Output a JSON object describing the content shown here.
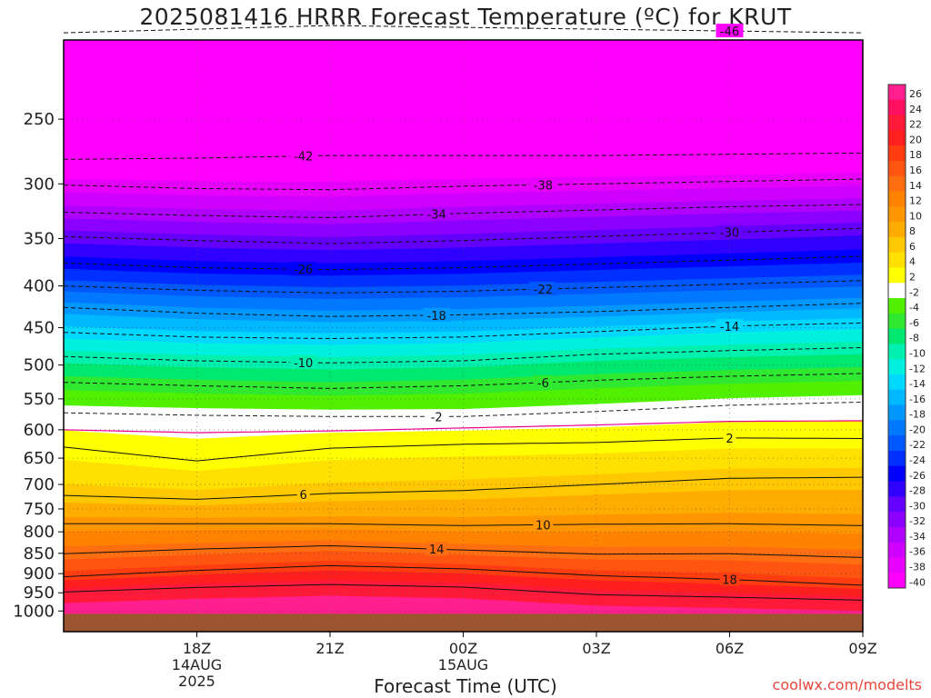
{
  "chart_data": {
    "type": "heatmap",
    "title": "2025081416 HRRR Forecast Temperature (ºC) for KRUT",
    "xlabel": "Forecast Time (UTC)",
    "ylabel": "",
    "credit": "coolwx.com/modelts",
    "y_axis": {
      "scale": "log",
      "inverted": true,
      "ticks": [
        250,
        300,
        350,
        400,
        450,
        500,
        550,
        600,
        650,
        700,
        750,
        800,
        850,
        900,
        950,
        1000
      ]
    },
    "x_axis": {
      "range_hours": [
        -3,
        27
      ],
      "ticks": [
        {
          "hour": 2,
          "lines": [
            "18Z",
            "14AUG",
            "2025"
          ]
        },
        {
          "hour": 7,
          "lines": [
            "21Z"
          ]
        },
        {
          "hour": 12,
          "lines": [
            "00Z",
            "15AUG"
          ]
        },
        {
          "hour": 17,
          "lines": [
            "03Z"
          ]
        },
        {
          "hour": 22,
          "lines": [
            "06Z"
          ]
        },
        {
          "hour": 27,
          "lines": [
            "09Z"
          ]
        }
      ]
    },
    "colorbar": {
      "labels": [
        "26",
        "24",
        "22",
        "20",
        "18",
        "16",
        "14",
        "12",
        "10",
        "8",
        "6",
        "4",
        "2",
        "-2",
        "-4",
        "-6",
        "-8",
        "-10",
        "-12",
        "-14",
        "-16",
        "-18",
        "-20",
        "-22",
        "-24",
        "-26",
        "-28",
        "-30",
        "-32",
        "-34",
        "-36",
        "-38",
        "-40"
      ],
      "colors": [
        "#ff1f8f",
        "#ff1060",
        "#ff1a3a",
        "#ff1f1f",
        "#ff3d10",
        "#ff5510",
        "#ff6e10",
        "#ff8200",
        "#ff9600",
        "#ffac00",
        "#ffc800",
        "#ffe000",
        "#ffff00",
        "#ffffff",
        "#50f000",
        "#30e830",
        "#00e870",
        "#00f0b0",
        "#00f0e0",
        "#00d8ff",
        "#00b8ff",
        "#0098ff",
        "#0078ff",
        "#0058ff",
        "#0030ff",
        "#0000ff",
        "#3000ff",
        "#6400ff",
        "#8c00ff",
        "#b000ff",
        "#d000ff",
        "#e800ff",
        "#ff00ff"
      ]
    },
    "ground_color": "#9b5530",
    "isotherms": [
      {
        "value": -46,
        "label": "-46",
        "p": [
          196,
          194,
          192,
          193,
          194,
          195,
          196
        ]
      },
      {
        "value": -42,
        "label": "-42",
        "p": [
          280,
          279,
          277,
          277,
          277,
          276,
          275
        ]
      },
      {
        "value": -38,
        "label": "-38",
        "p": [
          301,
          304,
          305,
          302,
          300,
          298,
          296
        ]
      },
      {
        "value": -34,
        "label": "-34",
        "p": [
          325,
          328,
          330,
          326,
          323,
          320,
          318
        ]
      },
      {
        "value": -30,
        "label": "-30",
        "p": [
          348,
          352,
          355,
          352,
          348,
          344,
          340
        ]
      },
      {
        "value": -26,
        "label": "-26",
        "p": [
          375,
          380,
          382,
          380,
          376,
          372,
          368
        ]
      },
      {
        "value": -22,
        "label": "-22",
        "p": [
          400,
          405,
          408,
          406,
          402,
          398,
          394
        ]
      },
      {
        "value": -18,
        "label": "-18",
        "p": [
          425,
          432,
          436,
          434,
          430,
          425,
          420
        ]
      },
      {
        "value": -14,
        "label": "-14",
        "p": [
          456,
          462,
          464,
          462,
          455,
          448,
          444
        ]
      },
      {
        "value": -10,
        "label": "-10",
        "p": [
          488,
          494,
          497,
          494,
          485,
          480,
          476
        ]
      },
      {
        "value": -6,
        "label": "-6",
        "p": [
          525,
          530,
          534,
          530,
          522,
          516,
          512
        ]
      },
      {
        "value": -2,
        "label": "-2",
        "p": [
          572,
          576,
          578,
          578,
          570,
          560,
          555
        ]
      },
      {
        "value": 2,
        "label": "2",
        "p": [
          630,
          655,
          632,
          625,
          622,
          614,
          615
        ]
      },
      {
        "value": 6,
        "label": "6",
        "p": [
          722,
          730,
          718,
          712,
          700,
          688,
          686
        ]
      },
      {
        "value": 10,
        "label": "10",
        "p": [
          782,
          782,
          782,
          786,
          783,
          782,
          786
        ]
      },
      {
        "value": 14,
        "label": "14",
        "p": [
          851,
          840,
          832,
          842,
          852,
          851,
          860
        ]
      },
      {
        "value": 18,
        "label": "18",
        "p": [
          908,
          892,
          880,
          888,
          905,
          915,
          930
        ]
      },
      {
        "value": 22,
        "label": "",
        "p": [
          948,
          936,
          928,
          935,
          955,
          962,
          970
        ]
      }
    ]
  }
}
